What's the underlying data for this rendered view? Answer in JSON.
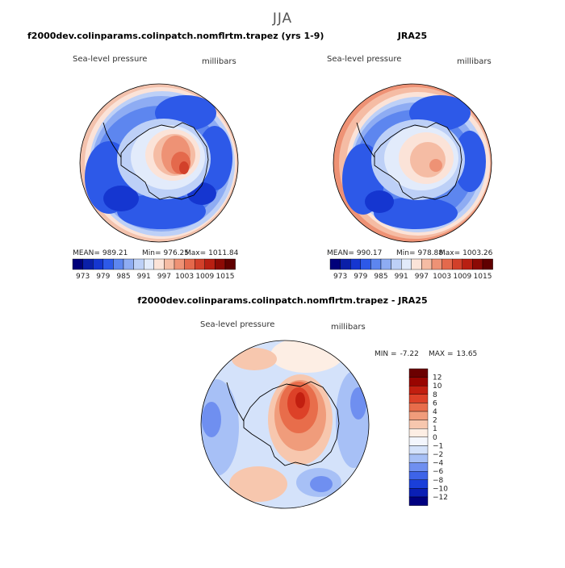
{
  "page": {
    "title": "JJA"
  },
  "chart_data": [
    {
      "type": "heatmap",
      "projection": "south-polar-stereographic",
      "title": "f2000dev.colinparams.colinpatch.nomflrtm.trapez (yrs 1-9)",
      "variable": "Sea-level pressure",
      "units": "millibars",
      "stats": {
        "mean_label": "MEAN=",
        "mean": "989.21",
        "min_label": "Min=",
        "min": "976.25",
        "max_label": "Max=",
        "max": "1011.84"
      },
      "levels": [
        973,
        976,
        979,
        982,
        985,
        988,
        991,
        994,
        997,
        1000,
        1003,
        1006,
        1009,
        1012,
        1015
      ],
      "level_labels": [
        "973",
        "979",
        "985",
        "991",
        "997",
        "1003",
        "1009",
        "1015"
      ],
      "colors": [
        "#00007a",
        "#0a1fa8",
        "#1536d0",
        "#2d59e8",
        "#5d86ef",
        "#8eacf3",
        "#bdd0f7",
        "#e2ebfb",
        "#fbe3d8",
        "#f5bca4",
        "#ee9275",
        "#e4694c",
        "#d2402a",
        "#b81f12",
        "#8c0a05",
        "#600000"
      ],
      "colorbar_orientation": "horizontal"
    },
    {
      "type": "heatmap",
      "projection": "south-polar-stereographic",
      "title": "JRA25",
      "variable": "Sea-level pressure",
      "units": "millibars",
      "stats": {
        "mean_label": "MEAN=",
        "mean": "990.17",
        "min_label": "Min=",
        "min": "978.88",
        "max_label": "Max=",
        "max": "1003.26"
      },
      "levels": [
        973,
        976,
        979,
        982,
        985,
        988,
        991,
        994,
        997,
        1000,
        1003,
        1006,
        1009,
        1012,
        1015
      ],
      "level_labels": [
        "973",
        "979",
        "985",
        "991",
        "997",
        "1003",
        "1009",
        "1015"
      ],
      "colors": [
        "#00007a",
        "#0a1fa8",
        "#1536d0",
        "#2d59e8",
        "#5d86ef",
        "#8eacf3",
        "#bdd0f7",
        "#e2ebfb",
        "#fbe3d8",
        "#f5bca4",
        "#ee9275",
        "#e4694c",
        "#d2402a",
        "#b81f12",
        "#8c0a05",
        "#600000"
      ],
      "colorbar_orientation": "horizontal"
    },
    {
      "type": "heatmap",
      "projection": "south-polar-stereographic",
      "title": "f2000dev.colinparams.colinpatch.nomflrtm.trapez - JRA25",
      "variable": "Sea-level pressure",
      "units": "millibars",
      "stats": {
        "min_label": "MIN =",
        "min": "-7.22",
        "max_label": "MAX =",
        "max": "13.65"
      },
      "levels": [
        -12,
        -10,
        -8,
        -6,
        -4,
        -2,
        -1,
        0,
        1,
        2,
        4,
        6,
        8,
        10,
        12
      ],
      "level_labels": [
        "12",
        "10",
        "8",
        "6",
        "4",
        "2",
        "1",
        "0",
        "−1",
        "−2",
        "−4",
        "−6",
        "−8",
        "−10",
        "−12"
      ],
      "colors": [
        "#000080",
        "#0a1fb5",
        "#1a3fd9",
        "#3e64e8",
        "#6f8ff0",
        "#a7c0f6",
        "#d4e2fa",
        "#f3f6fd",
        "#fdeee4",
        "#f7c7ae",
        "#f09c7b",
        "#e86d4b",
        "#dd4128",
        "#c21f10",
        "#990500",
        "#6b0000"
      ],
      "colorbar_orientation": "vertical"
    }
  ]
}
